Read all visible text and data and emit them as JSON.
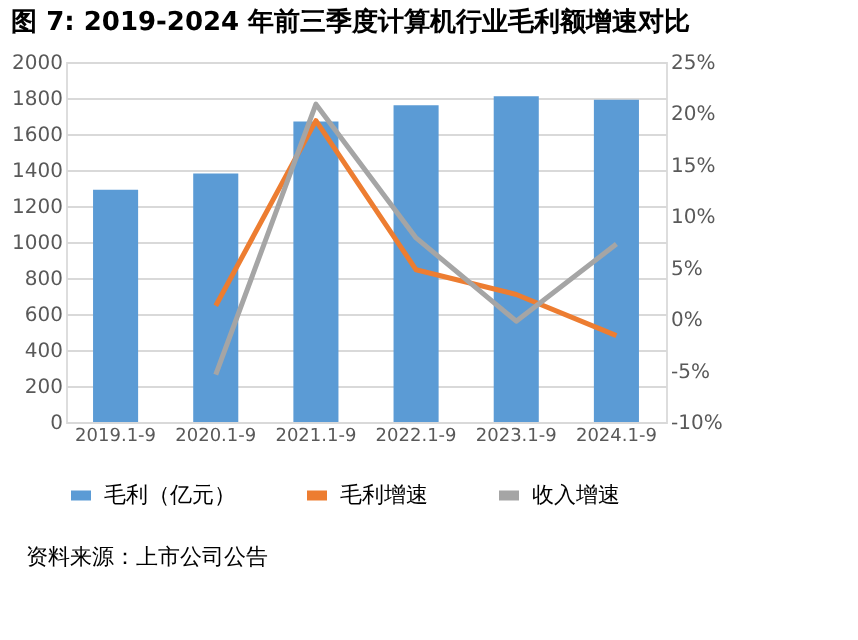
{
  "chart_data": {
    "type": "bar",
    "title": "图 7: 2019-2024 年前三季度计算机行业毛利额增速对比",
    "categories": [
      "2019.1-9",
      "2020.1-9",
      "2021.1-9",
      "2022.1-9",
      "2023.1-9",
      "2024.1-9"
    ],
    "series": [
      {
        "name": "毛利（亿元）",
        "color": "#5b9bd5",
        "values": [
          1290,
          1380,
          1670,
          1760,
          1810,
          1790
        ]
      },
      {
        "name": "毛利增速",
        "type": "line",
        "axis": "y2",
        "color": "#ed7d31",
        "values": [
          null,
          1.3,
          19.3,
          4.8,
          2.4,
          -1.6
        ]
      },
      {
        "name": "收入增速",
        "type": "line",
        "axis": "y2",
        "color": "#a5a5a5",
        "values": [
          null,
          -5.4,
          20.9,
          7.9,
          -0.2,
          7.3
        ]
      }
    ],
    "ylim": [
      0,
      2000
    ],
    "yticks": [
      0,
      200,
      400,
      600,
      800,
      1000,
      1200,
      1400,
      1600,
      1800,
      2000
    ],
    "y2lim": [
      -10,
      25
    ],
    "y2ticks": [
      {
        "value": -10,
        "label": "-10%"
      },
      {
        "value": -5,
        "label": "-5%"
      },
      {
        "value": 0,
        "label": "0%"
      },
      {
        "value": 5,
        "label": "5%"
      },
      {
        "value": 10,
        "label": "10%"
      },
      {
        "value": 15,
        "label": "15%"
      },
      {
        "value": 20,
        "label": "20%"
      },
      {
        "value": 25,
        "label": "25%"
      }
    ],
    "grid": "y",
    "legend": "bottom",
    "marker": "none",
    "line_style": "solid",
    "annotations": [
      "资料来源：上市公司公告"
    ]
  }
}
